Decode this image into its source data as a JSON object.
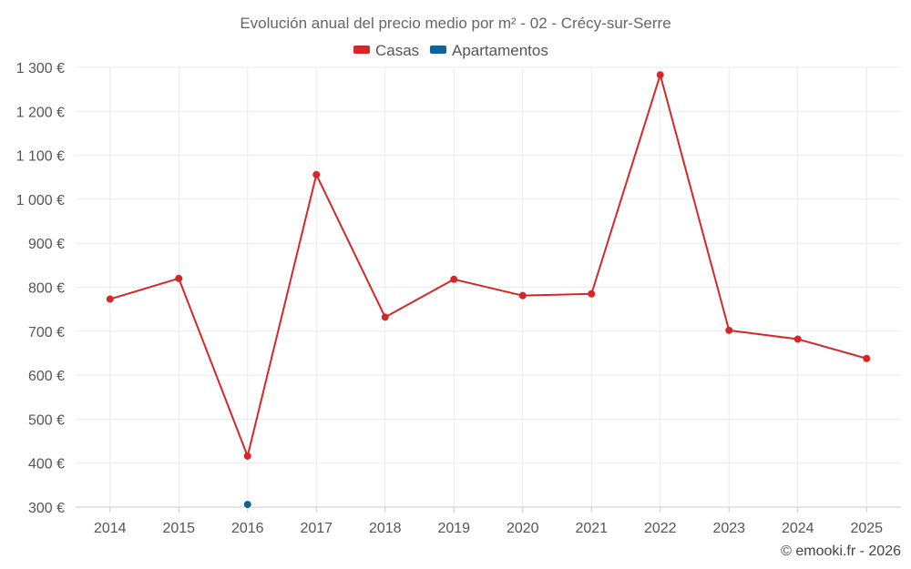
{
  "chart_data": {
    "type": "line",
    "title": "Evolución anual del precio medio por m² - 02 - Crécy-sur-Serre",
    "categories": [
      "2014",
      "2015",
      "2016",
      "2017",
      "2018",
      "2019",
      "2020",
      "2021",
      "2022",
      "2023",
      "2024",
      "2025"
    ],
    "series": [
      {
        "name": "Casas",
        "color": "#d62728",
        "values": [
          773,
          820,
          416,
          1056,
          732,
          818,
          781,
          785,
          1283,
          702,
          682,
          638
        ]
      },
      {
        "name": "Apartamentos",
        "color": "#0f6496",
        "values": [
          null,
          null,
          306,
          null,
          null,
          null,
          null,
          null,
          null,
          null,
          null,
          null
        ]
      }
    ],
    "y_ticks": [
      300,
      400,
      500,
      600,
      700,
      800,
      900,
      1000,
      1100,
      1200,
      1300
    ],
    "y_tick_labels": [
      "300 €",
      "400 €",
      "500 €",
      "600 €",
      "700 €",
      "800 €",
      "900 €",
      "1 000 €",
      "1 100 €",
      "1 200 €",
      "1 300 €"
    ],
    "ylim": [
      300,
      1300
    ],
    "grid": true,
    "legend_position": "top-center",
    "xlabel": "",
    "ylabel": ""
  },
  "credit": "© emooki.fr - 2026"
}
